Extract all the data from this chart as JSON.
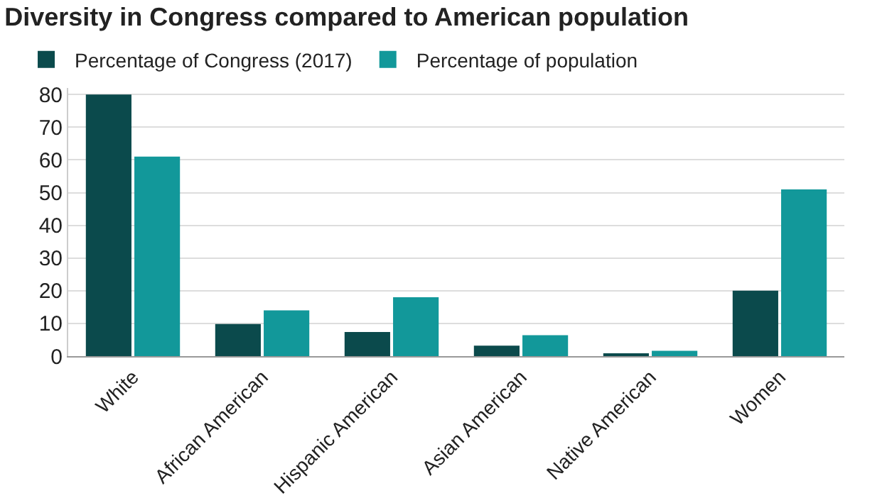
{
  "chart_data": {
    "type": "bar",
    "title": "Diversity in Congress compared to American population",
    "categories": [
      "White",
      "African American",
      "Hispanic American",
      "Asian American",
      "Native American",
      "Women"
    ],
    "series": [
      {
        "name": "Percentage of Congress (2017)",
        "color": "#0b4a4c",
        "values": [
          80,
          9.8,
          7.4,
          3.2,
          0.5,
          20
        ]
      },
      {
        "name": "Percentage of population",
        "color": "#12989a",
        "values": [
          61,
          14,
          18,
          6.4,
          1.6,
          51
        ]
      }
    ],
    "ylim": [
      0,
      82
    ],
    "yticks": [
      0,
      10,
      20,
      30,
      40,
      50,
      60,
      70,
      80
    ],
    "grid": "y",
    "legend": "top left"
  }
}
